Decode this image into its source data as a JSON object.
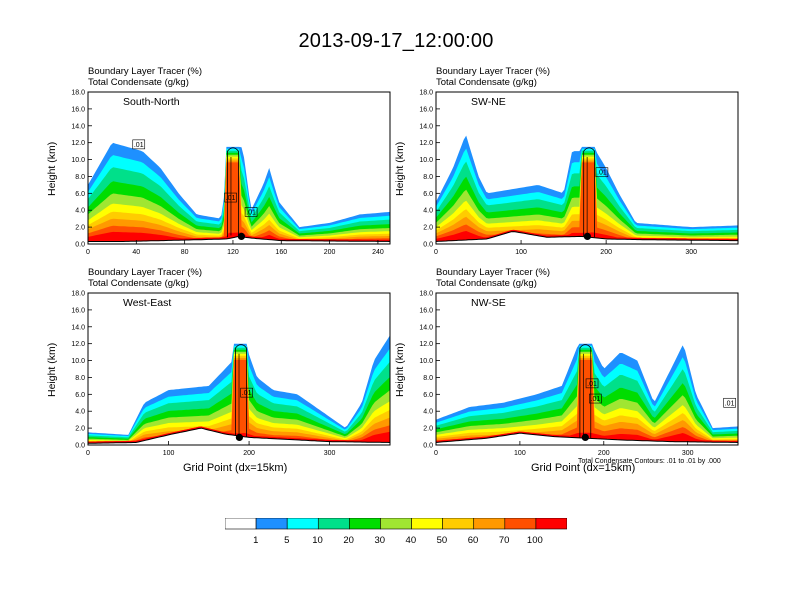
{
  "title": "2013-09-17_12:00:00",
  "colorbar": {
    "labels": [
      "1",
      "5",
      "10",
      "20",
      "30",
      "40",
      "50",
      "60",
      "70",
      "100"
    ],
    "colors": [
      "#ffffff",
      "#1e90ff",
      "#00ffff",
      "#00e08a",
      "#00dd00",
      "#a0e632",
      "#ffff00",
      "#ffcc00",
      "#ff9900",
      "#ff5000",
      "#ff0000"
    ]
  },
  "contour_note": "Total Condensate Contours: .01 to .01 by .000",
  "chart_data": [
    {
      "type": "heatmap",
      "panel_label": "South-North",
      "field_titles": [
        "Boundary Layer Tracer   (%)",
        "Total Condensate   (g/kg)"
      ],
      "ylabel": "Height (km)",
      "xlabel": "",
      "ylim": [
        0,
        18
      ],
      "yticks": [
        "0.0",
        "2.0",
        "4.0",
        "6.0",
        "8.0",
        "10.0",
        "12.0",
        "14.0",
        "16.0",
        "18.0"
      ],
      "xlim": [
        0,
        250
      ],
      "xticks": [
        0,
        40,
        80,
        120,
        160,
        200,
        240
      ],
      "terrain": [
        [
          0,
          0.3
        ],
        [
          30,
          0.3
        ],
        [
          60,
          0.4
        ],
        [
          90,
          0.5
        ],
        [
          115,
          0.6
        ],
        [
          125,
          0.9
        ],
        [
          135,
          0.7
        ],
        [
          160,
          0.4
        ],
        [
          250,
          0.3
        ]
      ],
      "tracer_profile": [
        [
          0,
          7
        ],
        [
          20,
          12
        ],
        [
          45,
          11
        ],
        [
          60,
          9
        ],
        [
          75,
          6
        ],
        [
          90,
          3.5
        ],
        [
          110,
          3
        ],
        [
          118,
          11
        ],
        [
          128,
          11.5
        ],
        [
          135,
          4
        ],
        [
          145,
          7
        ],
        [
          150,
          9
        ],
        [
          158,
          5
        ],
        [
          175,
          2
        ],
        [
          200,
          2.5
        ],
        [
          225,
          3.5
        ],
        [
          250,
          3.8
        ]
      ],
      "convection": [
        {
          "x": 120,
          "top": 11.5
        }
      ],
      "contour_labels": [
        {
          "x": 42,
          "y": 11.8,
          "text": ".01"
        },
        {
          "x": 118,
          "y": 5.5,
          "text": ".01"
        },
        {
          "x": 135,
          "y": 3.8,
          "text": ".01"
        }
      ],
      "marker": {
        "x": 127,
        "y": 0.9
      }
    },
    {
      "type": "heatmap",
      "panel_label": "SW-NE",
      "field_titles": [
        "Boundary Layer Tracer   (%)",
        "Total Condensate   (g/kg)"
      ],
      "ylabel": "Height (km)",
      "xlabel": "",
      "ylim": [
        0,
        18
      ],
      "yticks": [
        "0.0",
        "2.0",
        "4.0",
        "6.0",
        "8.0",
        "10.0",
        "12.0",
        "14.0",
        "16.0",
        "18.0"
      ],
      "xlim": [
        0,
        355
      ],
      "xticks": [
        0,
        100,
        200,
        300
      ],
      "terrain": [
        [
          0,
          0.3
        ],
        [
          60,
          0.6
        ],
        [
          90,
          1.5
        ],
        [
          130,
          0.8
        ],
        [
          170,
          0.9
        ],
        [
          200,
          0.6
        ],
        [
          250,
          0.5
        ],
        [
          355,
          0.4
        ]
      ],
      "tracer_profile": [
        [
          0,
          5
        ],
        [
          20,
          9
        ],
        [
          35,
          13
        ],
        [
          50,
          8
        ],
        [
          60,
          6
        ],
        [
          90,
          6.5
        ],
        [
          120,
          7
        ],
        [
          150,
          6
        ],
        [
          160,
          11
        ],
        [
          175,
          11
        ],
        [
          185,
          11.5
        ],
        [
          200,
          9
        ],
        [
          215,
          6
        ],
        [
          235,
          2.5
        ],
        [
          300,
          2
        ],
        [
          355,
          2.2
        ]
      ],
      "convection": [
        {
          "x": 180,
          "top": 11.5
        }
      ],
      "contour_labels": [
        {
          "x": 195,
          "y": 8.5,
          "text": ".01"
        }
      ],
      "marker": {
        "x": 178,
        "y": 0.9
      }
    },
    {
      "type": "heatmap",
      "panel_label": "West-East",
      "field_titles": [
        "Boundary Layer Tracer   (%)",
        "Total Condensate   (g/kg)"
      ],
      "ylabel": "Height (km)",
      "xlabel": "Grid Point (dx=15km)",
      "ylim": [
        0,
        18
      ],
      "yticks": [
        "0.0",
        "2.0",
        "4.0",
        "6.0",
        "8.0",
        "10.0",
        "12.0",
        "14.0",
        "16.0",
        "18.0"
      ],
      "xlim": [
        0,
        375
      ],
      "xticks": [
        0,
        100,
        200,
        300
      ],
      "terrain": [
        [
          0,
          0.2
        ],
        [
          60,
          0.3
        ],
        [
          100,
          1.2
        ],
        [
          140,
          2.0
        ],
        [
          170,
          1.3
        ],
        [
          200,
          0.9
        ],
        [
          260,
          0.6
        ],
        [
          300,
          0.4
        ],
        [
          375,
          0.3
        ]
      ],
      "tracer_profile": [
        [
          0,
          1.5
        ],
        [
          50,
          1.2
        ],
        [
          70,
          5
        ],
        [
          100,
          6.5
        ],
        [
          150,
          7
        ],
        [
          180,
          10
        ],
        [
          195,
          12
        ],
        [
          210,
          8
        ],
        [
          230,
          6.5
        ],
        [
          260,
          6
        ],
        [
          290,
          4
        ],
        [
          320,
          2
        ],
        [
          340,
          5
        ],
        [
          355,
          10
        ],
        [
          375,
          13
        ]
      ],
      "convection": [
        {
          "x": 190,
          "top": 12
        }
      ],
      "contour_labels": [
        {
          "x": 197,
          "y": 6.2,
          "text": ".01"
        }
      ],
      "marker": {
        "x": 188,
        "y": 0.9
      }
    },
    {
      "type": "heatmap",
      "panel_label": "NW-SE",
      "field_titles": [
        "Boundary Layer Tracer   (%)",
        "Total Condensate   (g/kg)"
      ],
      "ylabel": "Height (km)",
      "xlabel": "Grid Point (dx=15km)",
      "ylim": [
        0,
        18
      ],
      "yticks": [
        "0.0",
        "2.0",
        "4.0",
        "6.0",
        "8.0",
        "10.0",
        "12.0",
        "14.0",
        "16.0",
        "18.0"
      ],
      "xlim": [
        0,
        360
      ],
      "xticks": [
        0,
        100,
        200,
        300
      ],
      "terrain": [
        [
          0,
          0.3
        ],
        [
          60,
          0.8
        ],
        [
          100,
          1.4
        ],
        [
          140,
          1.0
        ],
        [
          180,
          0.8
        ],
        [
          220,
          0.6
        ],
        [
          280,
          0.4
        ],
        [
          360,
          0.3
        ]
      ],
      "tracer_profile": [
        [
          0,
          3
        ],
        [
          40,
          4.5
        ],
        [
          80,
          5
        ],
        [
          120,
          6
        ],
        [
          150,
          7
        ],
        [
          170,
          12
        ],
        [
          185,
          12
        ],
        [
          200,
          9
        ],
        [
          220,
          11
        ],
        [
          240,
          10
        ],
        [
          260,
          5
        ],
        [
          280,
          9
        ],
        [
          295,
          12
        ],
        [
          310,
          6
        ],
        [
          330,
          2
        ],
        [
          360,
          2.2
        ]
      ],
      "convection": [
        {
          "x": 178,
          "top": 12
        }
      ],
      "contour_labels": [
        {
          "x": 186,
          "y": 7.3,
          "text": ".01"
        },
        {
          "x": 190,
          "y": 5.5,
          "text": ".01"
        },
        {
          "x": 350,
          "y": 5.0,
          "text": ".01"
        }
      ],
      "marker": {
        "x": 178,
        "y": 0.9
      }
    }
  ]
}
